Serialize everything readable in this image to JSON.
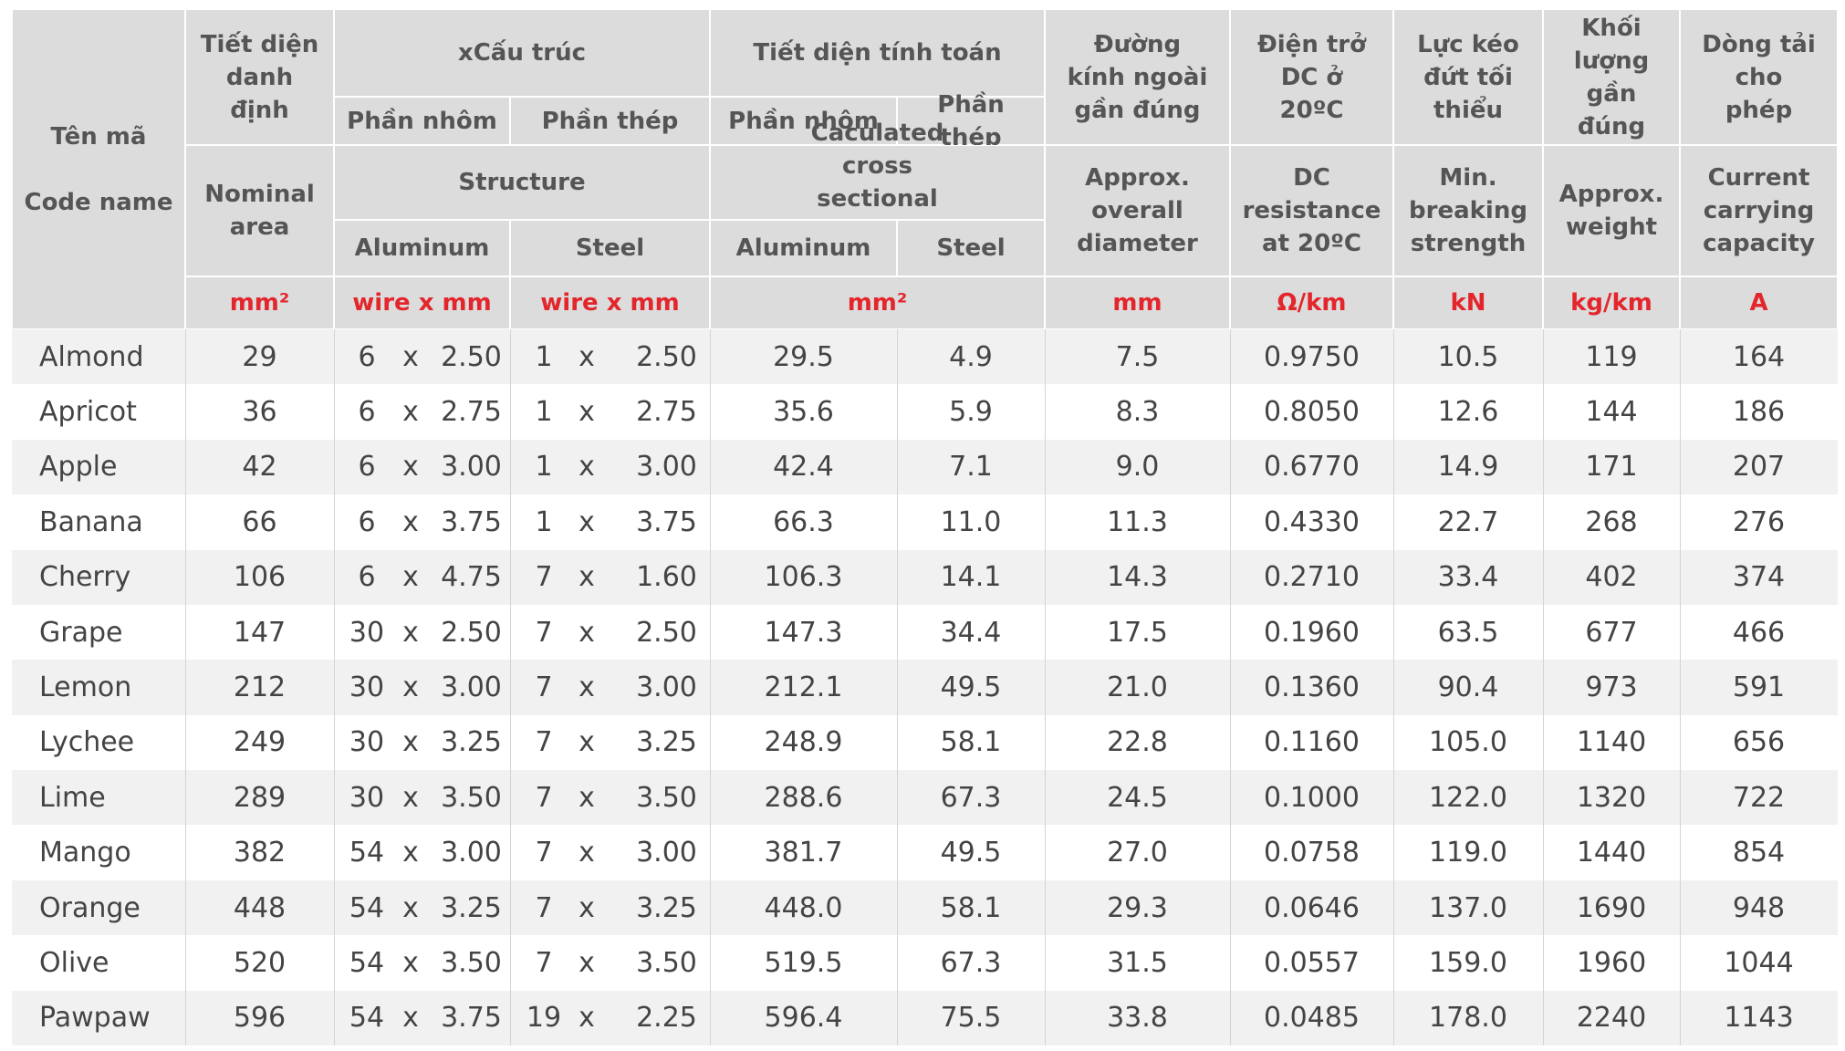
{
  "header": {
    "code_name": {
      "vi": "Tên mã",
      "en": "Code name"
    },
    "nominal_area": {
      "vi": "Tiết diện danh định",
      "en": "Nominal area",
      "unit": "mm²"
    },
    "structure": {
      "vi": "xCấu trúc",
      "en": "Structure",
      "aluminum": {
        "vi": "Phần nhôm",
        "en": "Aluminum",
        "unit": "wire x mm"
      },
      "steel": {
        "vi": "Phần thép",
        "en": "Steel",
        "unit": "wire x mm"
      }
    },
    "calculated_area": {
      "vi": "Tiết diện tính toán",
      "en": "Caculated cross sectional area",
      "unit": "mm²",
      "aluminum": {
        "vi": "Phần nhôm",
        "en": "Aluminum"
      },
      "steel": {
        "vi": "Phần thép",
        "en": "Steel"
      }
    },
    "diameter": {
      "vi": "Đường kính ngoài gần đúng",
      "en": "Approx. overall diameter",
      "unit": "mm"
    },
    "dc_resistance": {
      "vi": "Điện trở DC ở 20ºC",
      "en": "DC resistance at 20ºC",
      "unit": "Ω/km"
    },
    "breaking_strength": {
      "vi": "Lực kéo đứt tối thiểu",
      "en": "Min. breaking strength",
      "unit": "kN"
    },
    "weight": {
      "vi": "Khối lượng gần đúng",
      "en": "Approx. weight",
      "unit": "kg/km"
    },
    "current": {
      "vi": "Dòng tải cho phép",
      "en": "Current carrying capacity",
      "unit": "A"
    }
  },
  "multiply_sign": "x",
  "rows": [
    [
      "Almond",
      "29",
      "6",
      "2.50",
      "1",
      "2.50",
      "29.5",
      "4.9",
      "7.5",
      "0.9750",
      "10.5",
      "119",
      "164"
    ],
    [
      "Apricot",
      "36",
      "6",
      "2.75",
      "1",
      "2.75",
      "35.6",
      "5.9",
      "8.3",
      "0.8050",
      "12.6",
      "144",
      "186"
    ],
    [
      "Apple",
      "42",
      "6",
      "3.00",
      "1",
      "3.00",
      "42.4",
      "7.1",
      "9.0",
      "0.6770",
      "14.9",
      "171",
      "207"
    ],
    [
      "Banana",
      "66",
      "6",
      "3.75",
      "1",
      "3.75",
      "66.3",
      "11.0",
      "11.3",
      "0.4330",
      "22.7",
      "268",
      "276"
    ],
    [
      "Cherry",
      "106",
      "6",
      "4.75",
      "7",
      "1.60",
      "106.3",
      "14.1",
      "14.3",
      "0.2710",
      "33.4",
      "402",
      "374"
    ],
    [
      "Grape",
      "147",
      "30",
      "2.50",
      "7",
      "2.50",
      "147.3",
      "34.4",
      "17.5",
      "0.1960",
      "63.5",
      "677",
      "466"
    ],
    [
      "Lemon",
      "212",
      "30",
      "3.00",
      "7",
      "3.00",
      "212.1",
      "49.5",
      "21.0",
      "0.1360",
      "90.4",
      "973",
      "591"
    ],
    [
      "Lychee",
      "249",
      "30",
      "3.25",
      "7",
      "3.25",
      "248.9",
      "58.1",
      "22.8",
      "0.1160",
      "105.0",
      "1140",
      "656"
    ],
    [
      "Lime",
      "289",
      "30",
      "3.50",
      "7",
      "3.50",
      "288.6",
      "67.3",
      "24.5",
      "0.1000",
      "122.0",
      "1320",
      "722"
    ],
    [
      "Mango",
      "382",
      "54",
      "3.00",
      "7",
      "3.00",
      "381.7",
      "49.5",
      "27.0",
      "0.0758",
      "119.0",
      "1440",
      "854"
    ],
    [
      "Orange",
      "448",
      "54",
      "3.25",
      "7",
      "3.25",
      "448.0",
      "58.1",
      "29.3",
      "0.0646",
      "137.0",
      "1690",
      "948"
    ],
    [
      "Olive",
      "520",
      "54",
      "3.50",
      "7",
      "3.50",
      "519.5",
      "67.3",
      "31.5",
      "0.0557",
      "159.0",
      "1960",
      "1044"
    ],
    [
      "Pawpaw",
      "596",
      "54",
      "3.75",
      "19",
      "2.25",
      "596.4",
      "75.5",
      "33.8",
      "0.0485",
      "178.0",
      "2240",
      "1143"
    ]
  ]
}
